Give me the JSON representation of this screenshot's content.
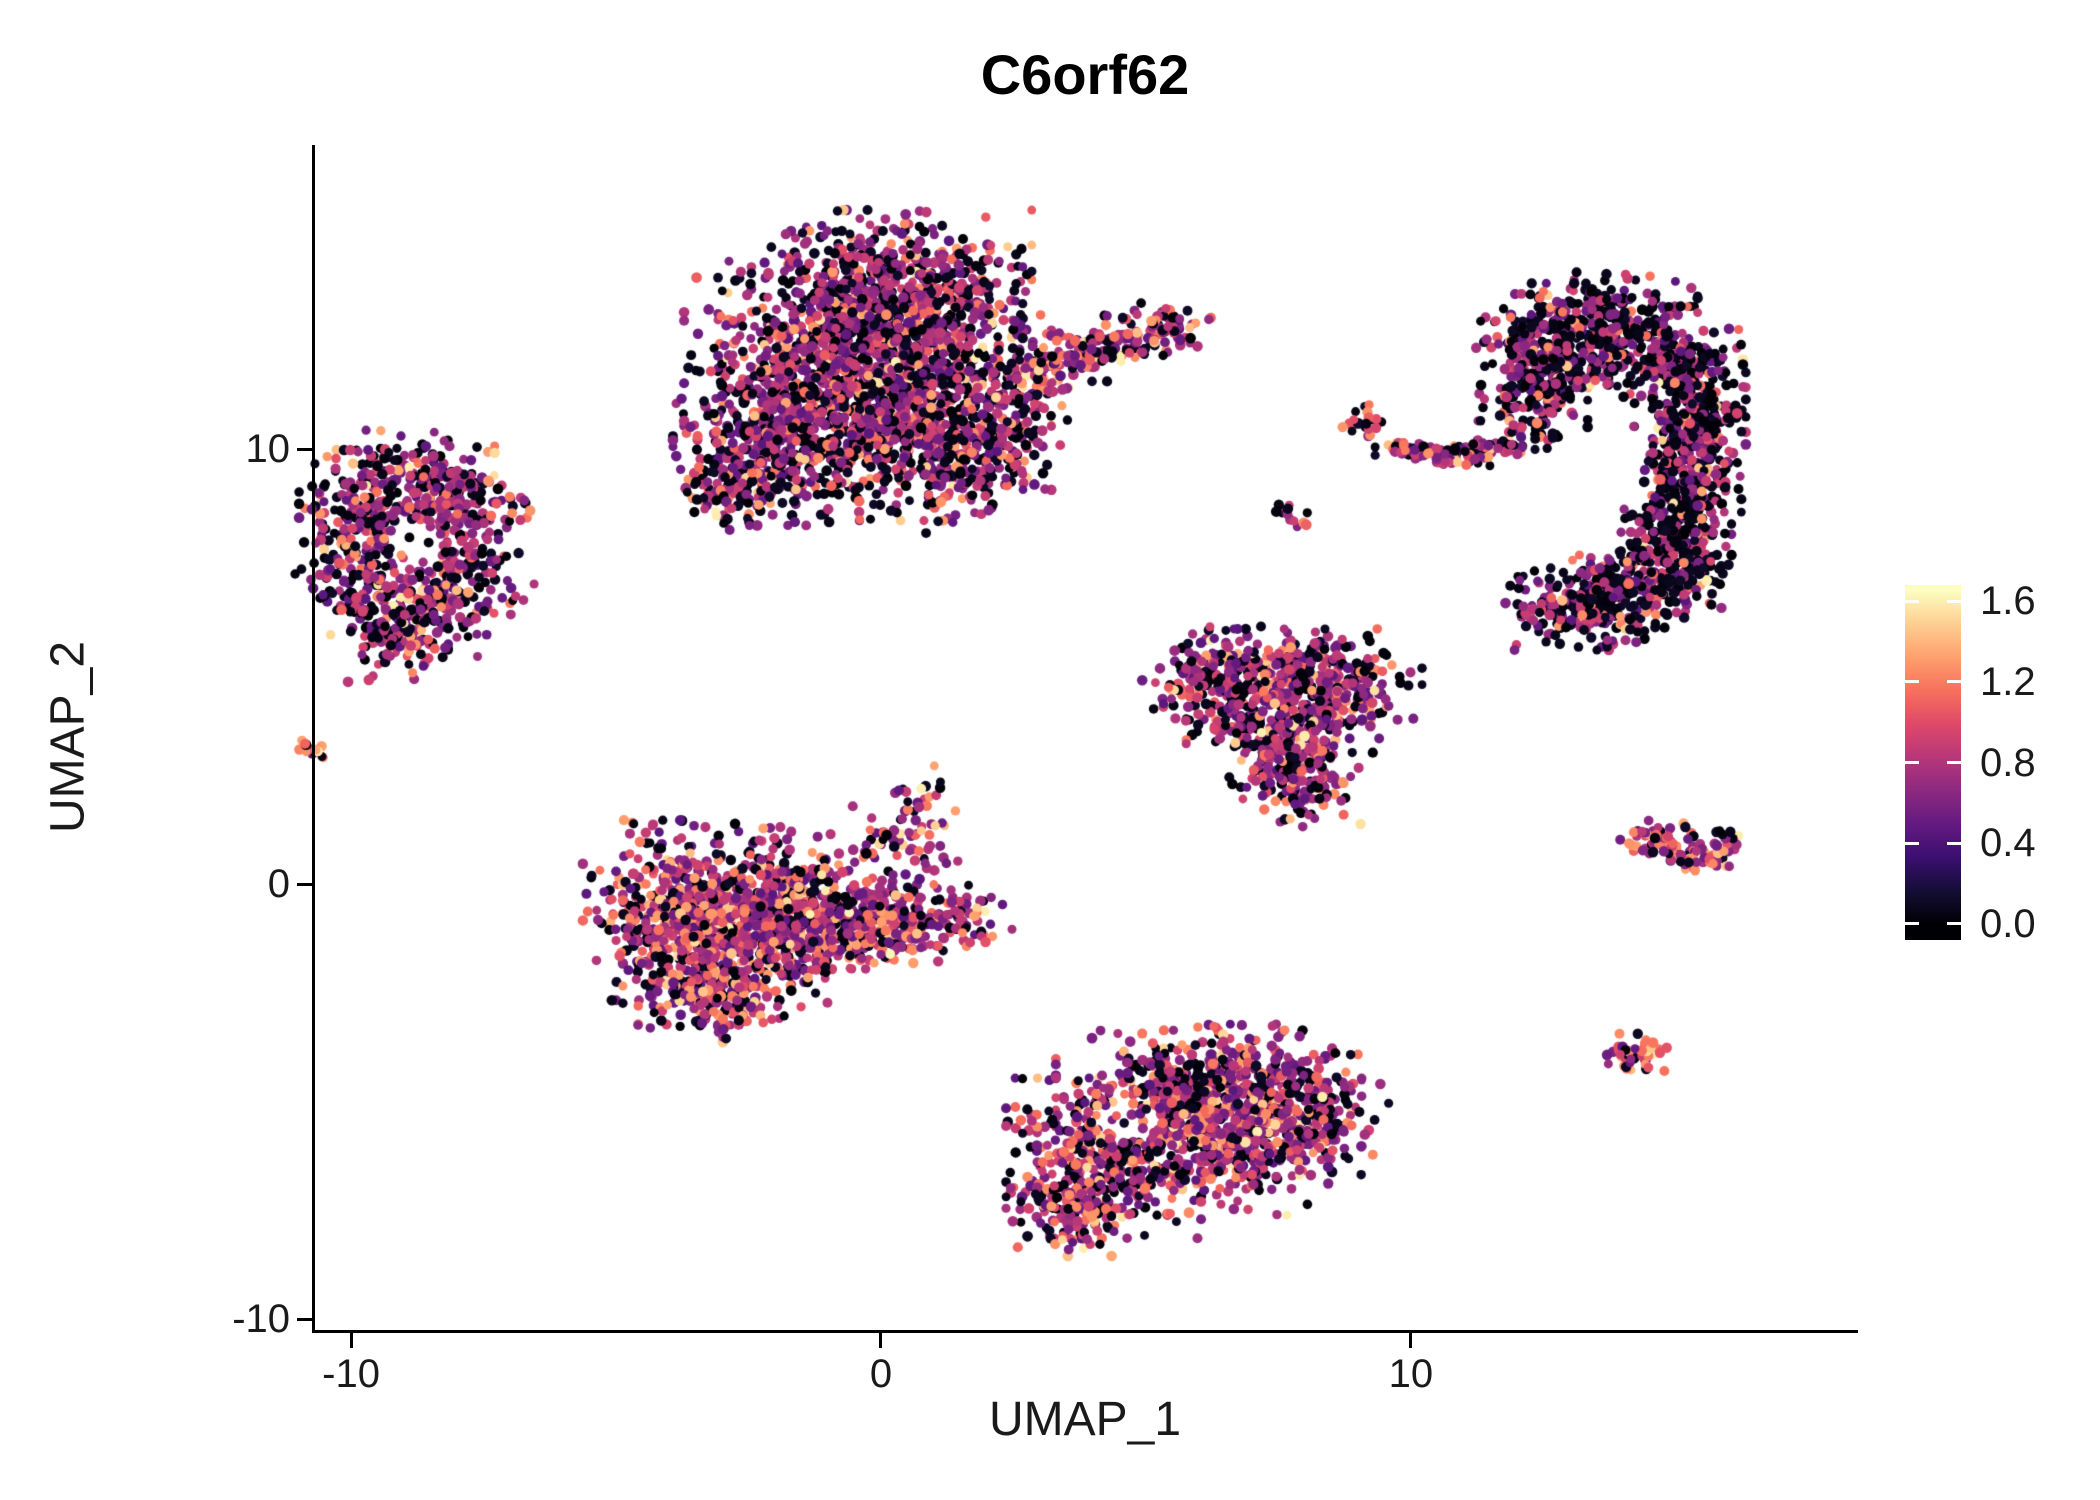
{
  "title": "C6orf62",
  "axes": {
    "x_label": "UMAP_1",
    "y_label": "UMAP_2",
    "x_ticks": [
      "-10",
      "0",
      "10"
    ],
    "x_tick_values": [
      -10,
      0,
      10
    ],
    "y_ticks": [
      "-10",
      "0",
      "10"
    ],
    "y_tick_values": [
      -10,
      0,
      10
    ]
  },
  "legend": {
    "tick_labels": [
      "1.6",
      "1.2",
      "0.8",
      "0.4",
      "0.0"
    ],
    "tick_values": [
      1.6,
      1.2,
      0.8,
      0.4,
      0.0
    ],
    "bar_value_range": [
      -0.08,
      1.68
    ]
  },
  "colors": {
    "background": "#ffffff",
    "axis_line": "#000000",
    "text": "#1a1a1a",
    "magma_stops": [
      "#000004",
      "#140E36",
      "#3B0F70",
      "#641A80",
      "#8C2981",
      "#B73779",
      "#DE4968",
      "#F7705C",
      "#FE9F6D",
      "#FECE91",
      "#FCFDBF"
    ]
  },
  "chart_data": {
    "type": "scatter",
    "title": "C6orf62",
    "xlabel": "UMAP_1",
    "ylabel": "UMAP_2",
    "xlim": [
      -10.68,
      18.38
    ],
    "ylim": [
      -10.25,
      16.99
    ],
    "x_ticks": [
      -10,
      0,
      10
    ],
    "y_ticks": [
      -10,
      0,
      10
    ],
    "color_scale": {
      "palette": "magma",
      "domain": [
        0.0,
        1.65
      ],
      "legend_ticks": [
        0.0,
        0.4,
        0.8,
        1.2,
        1.6
      ]
    },
    "grid": false,
    "legend_position": "right",
    "seed": 1234,
    "expression_bands": [
      [
        0.0,
        0.12
      ],
      [
        0.45,
        0.95
      ],
      [
        1.0,
        1.35
      ],
      [
        1.38,
        1.62
      ]
    ],
    "clusters": [
      {
        "name": "top-center-blob",
        "expr_weights": [
          0.34,
          0.51,
          0.12,
          0.03
        ],
        "lobes": [
          [
            -1.3,
            11.2,
            1.05,
            1.25,
            600
          ],
          [
            -0.2,
            12.6,
            1.25,
            1.05,
            680
          ],
          [
            0.8,
            11.0,
            1.05,
            1.15,
            580
          ],
          [
            -2.2,
            10.2,
            0.75,
            0.85,
            240
          ],
          [
            0.2,
            14.0,
            1.15,
            0.65,
            300
          ],
          [
            1.6,
            9.7,
            0.65,
            0.75,
            150
          ],
          [
            -2.9,
            9.2,
            0.5,
            0.5,
            120
          ],
          [
            2.4,
            10.6,
            0.5,
            0.6,
            70
          ]
        ],
        "holes": []
      },
      {
        "name": "top-blob-arm",
        "expr_weights": [
          0.25,
          0.45,
          0.25,
          0.05
        ],
        "lobes": [
          [
            3.0,
            11.8,
            0.45,
            0.3,
            70
          ],
          [
            3.9,
            12.2,
            0.45,
            0.28,
            70
          ],
          [
            4.8,
            12.55,
            0.4,
            0.28,
            60
          ],
          [
            5.5,
            12.85,
            0.3,
            0.25,
            40
          ],
          [
            6.2,
            12.95,
            0.06,
            0.06,
            2
          ]
        ],
        "holes": []
      },
      {
        "name": "left-ring-cluster",
        "expr_weights": [
          0.33,
          0.51,
          0.13,
          0.03
        ],
        "lobes": [
          [
            -9.6,
            8.6,
            0.6,
            0.6,
            150
          ],
          [
            -8.0,
            8.8,
            0.6,
            0.55,
            150
          ],
          [
            -9.8,
            7.2,
            0.55,
            0.6,
            120
          ],
          [
            -7.8,
            7.0,
            0.55,
            0.6,
            130
          ],
          [
            -8.8,
            6.2,
            0.7,
            0.5,
            120
          ],
          [
            -8.9,
            9.4,
            0.7,
            0.45,
            100
          ],
          [
            -9.2,
            5.8,
            0.45,
            0.5,
            90
          ]
        ],
        "holes": [
          [
            -8.8,
            7.9,
            0.5,
            0.85
          ]
        ]
      },
      {
        "name": "left-tiny-dot",
        "expr_weights": [
          0.1,
          0.3,
          0.5,
          0.1
        ],
        "lobes": [
          [
            -10.7,
            3.1,
            0.16,
            0.13,
            14
          ]
        ],
        "holes": []
      },
      {
        "name": "mid-left-cluster",
        "expr_weights": [
          0.22,
          0.5,
          0.22,
          0.06
        ],
        "lobes": [
          [
            -3.9,
            -0.6,
            0.75,
            0.9,
            350
          ],
          [
            -2.8,
            -1.4,
            0.9,
            0.8,
            400
          ],
          [
            -2.0,
            -0.3,
            0.8,
            0.7,
            300
          ],
          [
            -1.0,
            -0.9,
            0.7,
            0.55,
            200
          ],
          [
            0.2,
            -0.9,
            0.7,
            0.45,
            150
          ],
          [
            1.3,
            -0.8,
            0.55,
            0.35,
            80
          ],
          [
            -3.2,
            -2.6,
            0.6,
            0.45,
            120
          ],
          [
            0.3,
            0.9,
            0.5,
            0.5,
            60
          ],
          [
            0.6,
            1.8,
            0.35,
            0.4,
            30
          ]
        ],
        "holes": []
      },
      {
        "name": "bottom-center-cluster",
        "expr_weights": [
          0.27,
          0.5,
          0.18,
          0.05
        ],
        "lobes": [
          [
            4.2,
            -6.3,
            0.8,
            0.8,
            350
          ],
          [
            5.6,
            -5.2,
            1.0,
            0.8,
            400
          ],
          [
            7.0,
            -4.6,
            0.9,
            0.6,
            300
          ],
          [
            6.6,
            -6.0,
            0.8,
            0.7,
            250
          ],
          [
            8.2,
            -5.3,
            0.6,
            0.6,
            150
          ],
          [
            3.6,
            -7.4,
            0.5,
            0.5,
            120
          ]
        ],
        "holes": [
          [
            4.7,
            -5.4,
            0.55,
            0.8
          ]
        ]
      },
      {
        "name": "right-mid-triangle",
        "expr_weights": [
          0.3,
          0.52,
          0.14,
          0.04
        ],
        "lobes": [
          [
            7.0,
            4.6,
            0.9,
            0.55,
            250
          ],
          [
            8.6,
            4.6,
            0.7,
            0.55,
            200
          ],
          [
            7.6,
            3.4,
            0.8,
            0.6,
            250
          ],
          [
            7.9,
            2.3,
            0.5,
            0.5,
            120
          ],
          [
            6.3,
            5.0,
            0.45,
            0.4,
            80
          ]
        ],
        "holes": []
      },
      {
        "name": "right-crescent",
        "expr_weights": [
          0.52,
          0.4,
          0.06,
          0.02
        ],
        "lobes": [
          [
            12.6,
            12.2,
            0.6,
            0.7,
            250
          ],
          [
            13.8,
            12.8,
            0.7,
            0.55,
            250
          ],
          [
            15.0,
            11.9,
            0.55,
            0.6,
            220
          ],
          [
            15.4,
            10.5,
            0.4,
            0.7,
            220
          ],
          [
            15.2,
            9.0,
            0.45,
            0.7,
            220
          ],
          [
            14.9,
            7.5,
            0.5,
            0.6,
            220
          ],
          [
            14.0,
            6.6,
            0.6,
            0.5,
            200
          ],
          [
            12.9,
            6.3,
            0.5,
            0.4,
            120
          ],
          [
            12.3,
            10.9,
            0.45,
            0.6,
            120
          ]
        ],
        "holes": [
          [
            13.6,
            9.4,
            1.0,
            0.8
          ],
          [
            12.6,
            8.3,
            0.8,
            0.7
          ]
        ]
      },
      {
        "name": "satellite-small-top",
        "expr_weights": [
          0.25,
          0.45,
          0.25,
          0.05
        ],
        "lobes": [
          [
            9.1,
            10.65,
            0.2,
            0.16,
            20
          ]
        ],
        "holes": []
      },
      {
        "name": "satellite-streaks",
        "expr_weights": [
          0.35,
          0.5,
          0.12,
          0.03
        ],
        "lobes": [
          [
            9.9,
            10.0,
            0.25,
            0.1,
            40
          ],
          [
            10.8,
            9.8,
            0.3,
            0.12,
            45
          ],
          [
            11.4,
            10.05,
            0.3,
            0.1,
            40
          ]
        ],
        "holes": []
      },
      {
        "name": "satellite-pair",
        "expr_weights": [
          0.3,
          0.35,
          0.3,
          0.05
        ],
        "lobes": [
          [
            7.6,
            8.6,
            0.12,
            0.1,
            10
          ],
          [
            7.9,
            8.35,
            0.1,
            0.08,
            6
          ]
        ],
        "holes": []
      },
      {
        "name": "right-small-wedge",
        "expr_weights": [
          0.2,
          0.45,
          0.28,
          0.07
        ],
        "lobes": [
          [
            14.7,
            1.0,
            0.35,
            0.2,
            50
          ],
          [
            15.4,
            0.6,
            0.35,
            0.18,
            45
          ],
          [
            15.9,
            0.95,
            0.15,
            0.12,
            15
          ]
        ],
        "holes": []
      },
      {
        "name": "bottom-right-dot",
        "expr_weights": [
          0.15,
          0.35,
          0.4,
          0.1
        ],
        "lobes": [
          [
            14.3,
            -3.9,
            0.26,
            0.2,
            45
          ]
        ],
        "holes": []
      }
    ]
  }
}
